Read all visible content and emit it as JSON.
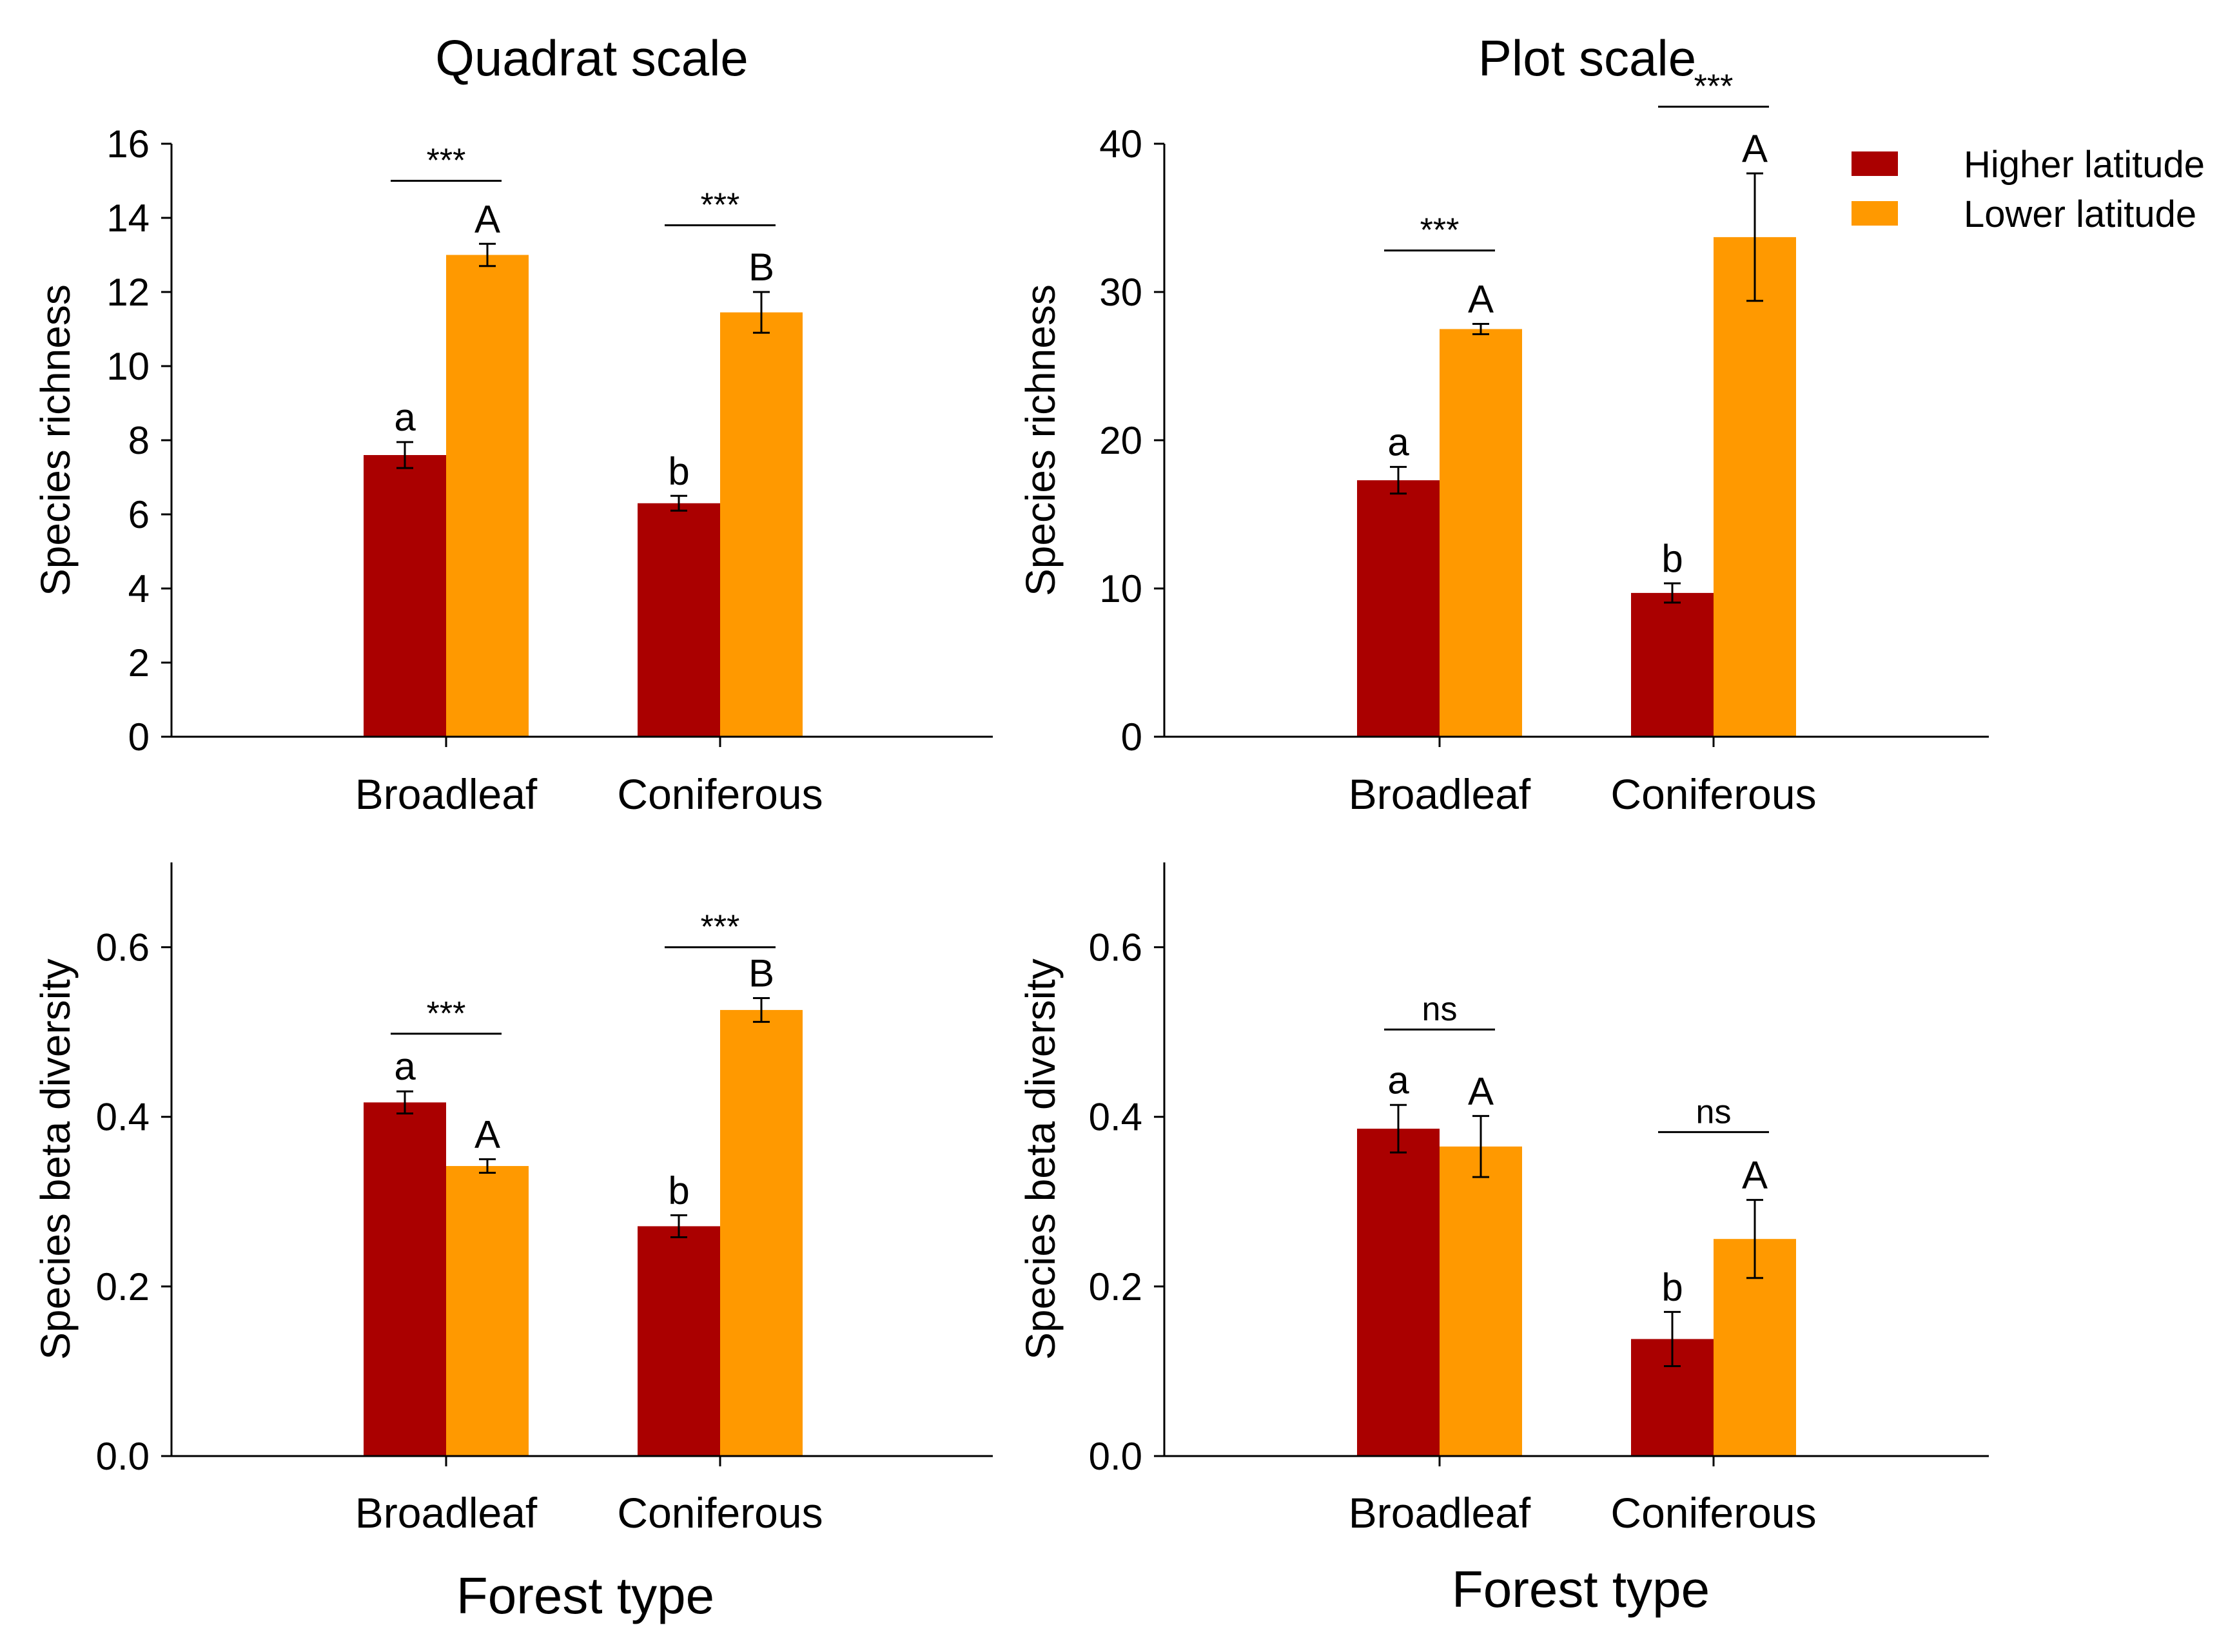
{
  "colors": {
    "higher": "#aa0000",
    "lower": "#ff9900"
  },
  "legend": [
    {
      "key": "higher",
      "label": "Higher latitude"
    },
    {
      "key": "lower",
      "label": "Lower latitude"
    }
  ],
  "chart_data": [
    {
      "id": "quadrat-richness",
      "type": "bar",
      "title": "Quadrat scale",
      "ylabel": "Species richness",
      "xlabel": "",
      "ylim": [
        0,
        16
      ],
      "yticks": [
        0,
        2,
        4,
        6,
        8,
        10,
        12,
        14,
        16
      ],
      "ytick_labels": [
        "0",
        "2",
        "4",
        "6",
        "8",
        "10",
        "12",
        "14",
        "16"
      ],
      "categories": [
        "Broadleaf",
        "Coniferous"
      ],
      "series": [
        {
          "name": "Higher latitude",
          "key": "higher",
          "values": [
            7.6,
            6.3
          ],
          "errors": [
            0.35,
            0.2
          ],
          "letters": [
            "a",
            "b"
          ]
        },
        {
          "name": "Lower latitude",
          "key": "lower",
          "values": [
            13.0,
            11.45
          ],
          "errors": [
            0.3,
            0.55
          ],
          "letters": [
            "A",
            "B"
          ]
        }
      ],
      "significance": [
        {
          "label": "***",
          "y": 15.0
        },
        {
          "label": "***",
          "y": 13.8
        }
      ]
    },
    {
      "id": "plot-richness",
      "type": "bar",
      "title": "Plot scale",
      "ylabel": "Species richness",
      "xlabel": "",
      "ylim": [
        0,
        40
      ],
      "yticks": [
        0,
        10,
        20,
        30,
        40
      ],
      "ytick_labels": [
        "0",
        "10",
        "20",
        "30",
        "40"
      ],
      "categories": [
        "Broadleaf",
        "Coniferous"
      ],
      "series": [
        {
          "name": "Higher latitude",
          "key": "higher",
          "values": [
            17.3,
            9.7
          ],
          "errors": [
            0.9,
            0.65
          ],
          "letters": [
            "a",
            "b"
          ]
        },
        {
          "name": "Lower latitude",
          "key": "lower",
          "values": [
            27.5,
            33.7
          ],
          "errors": [
            0.35,
            4.3
          ],
          "letters": [
            "A",
            "A"
          ]
        }
      ],
      "significance": [
        {
          "label": "***",
          "y": 32.8
        },
        {
          "label": "***",
          "y": 42.5
        }
      ]
    },
    {
      "id": "quadrat-beta",
      "type": "bar",
      "title": "",
      "ylabel": "Species beta diversity",
      "xlabel": "Forest type",
      "ylim": [
        0,
        0.7
      ],
      "yticks": [
        0,
        0.2,
        0.4,
        0.6
      ],
      "ytick_labels": [
        "0.0",
        "0.2",
        "0.4",
        "0.6"
      ],
      "categories": [
        "Broadleaf",
        "Coniferous"
      ],
      "series": [
        {
          "name": "Higher latitude",
          "key": "higher",
          "values": [
            0.417,
            0.271
          ],
          "errors": [
            0.013,
            0.013
          ],
          "letters": [
            "a",
            "b"
          ]
        },
        {
          "name": "Lower latitude",
          "key": "lower",
          "values": [
            0.342,
            0.526
          ],
          "errors": [
            0.008,
            0.014
          ],
          "letters": [
            "A",
            "B"
          ]
        }
      ],
      "significance": [
        {
          "label": "***",
          "y": 0.498
        },
        {
          "label": "***",
          "y": 0.6
        }
      ]
    },
    {
      "id": "plot-beta",
      "type": "bar",
      "title": "",
      "ylabel": "Species beta diversity",
      "xlabel": "Forest type",
      "ylim": [
        0,
        0.7
      ],
      "yticks": [
        0,
        0.2,
        0.4,
        0.6
      ],
      "ytick_labels": [
        "0.0",
        "0.2",
        "0.4",
        "0.6"
      ],
      "categories": [
        "Broadleaf",
        "Coniferous"
      ],
      "series": [
        {
          "name": "Higher latitude",
          "key": "higher",
          "values": [
            0.386,
            0.138
          ],
          "errors": [
            0.028,
            0.032
          ],
          "letters": [
            "a",
            "b"
          ]
        },
        {
          "name": "Lower latitude",
          "key": "lower",
          "values": [
            0.365,
            0.256
          ],
          "errors": [
            0.036,
            0.046
          ],
          "letters": [
            "A",
            "A"
          ]
        }
      ],
      "significance": [
        {
          "label": "ns",
          "y": 0.503
        },
        {
          "label": "ns",
          "y": 0.382
        }
      ]
    }
  ]
}
